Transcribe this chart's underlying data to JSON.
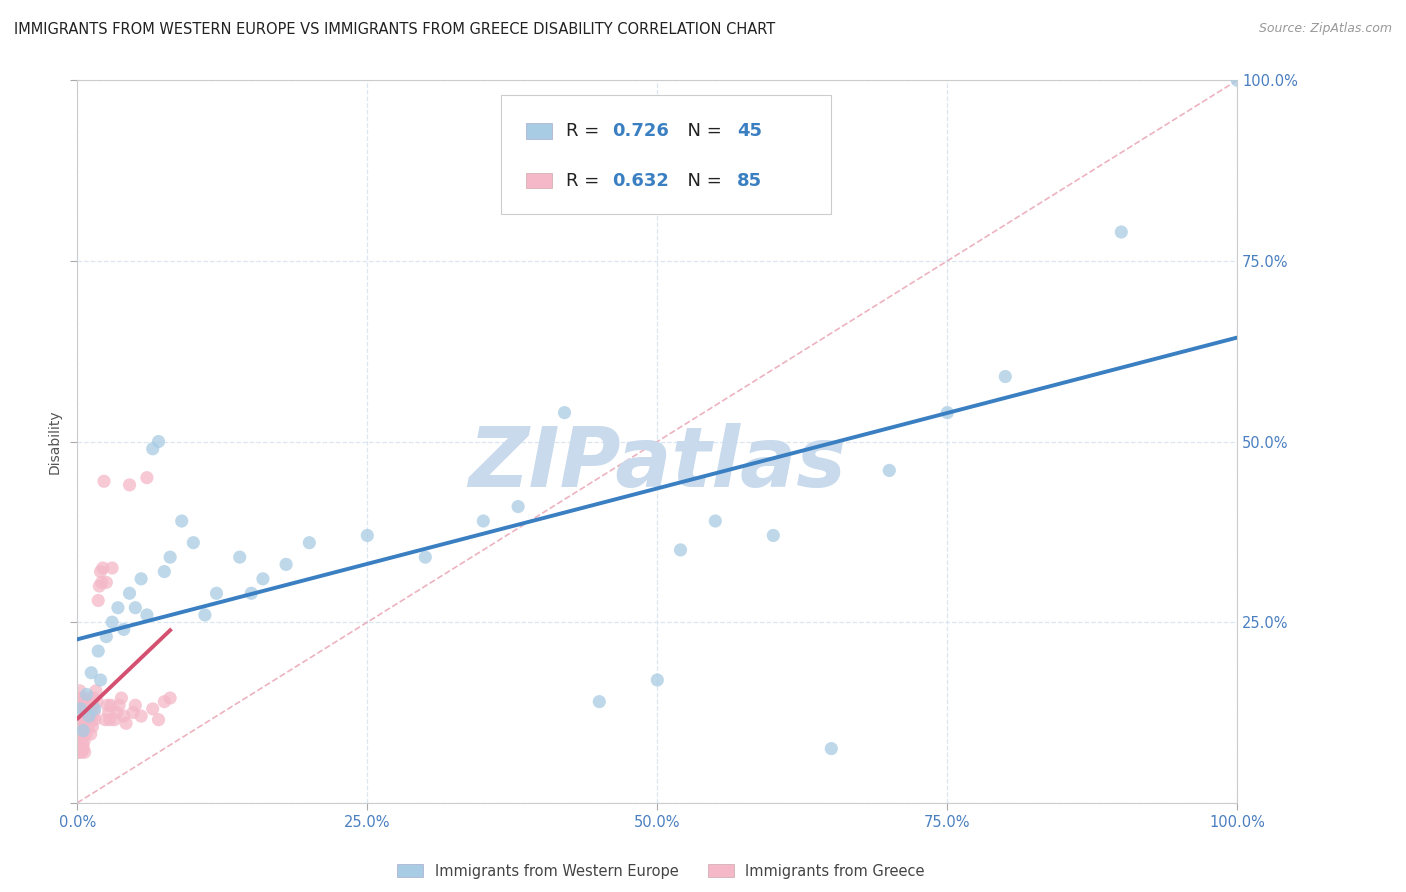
{
  "title": "IMMIGRANTS FROM WESTERN EUROPE VS IMMIGRANTS FROM GREECE DISABILITY CORRELATION CHART",
  "source": "Source: ZipAtlas.com",
  "ylabel": "Disability",
  "blue_label": "Immigrants from Western Europe",
  "pink_label": "Immigrants from Greece",
  "blue_R": 0.726,
  "blue_N": 45,
  "pink_R": 0.632,
  "pink_N": 85,
  "blue_color": "#a8cce4",
  "pink_color": "#f4b8c8",
  "blue_line_color": "#3a7fc1",
  "pink_line_color": "#d45070",
  "ref_line_color": "#e8a0b0",
  "grid_color": "#d8e4f0",
  "watermark_color": "#c8daec",
  "title_color": "#222222",
  "axis_tick_color": "#4a7fc0",
  "ylabel_color": "#555555",
  "legend_text_color": "#222222",
  "legend_val_color": "#3a7fc1",
  "blue_x": [
    0.3,
    0.5,
    0.8,
    1.0,
    1.2,
    1.5,
    1.8,
    2.0,
    2.5,
    3.0,
    3.5,
    4.0,
    4.5,
    5.0,
    5.5,
    6.0,
    6.5,
    7.0,
    7.5,
    8.0,
    9.0,
    10.0,
    11.0,
    12.0,
    14.0,
    15.0,
    16.0,
    18.0,
    20.0,
    25.0,
    30.0,
    35.0,
    38.0,
    42.0,
    45.0,
    50.0,
    52.0,
    55.0,
    60.0,
    65.0,
    70.0,
    75.0,
    80.0,
    90.0,
    100.0
  ],
  "blue_y": [
    13.0,
    10.0,
    15.0,
    12.0,
    18.0,
    13.0,
    21.0,
    17.0,
    23.0,
    25.0,
    27.0,
    24.0,
    29.0,
    27.0,
    31.0,
    26.0,
    49.0,
    50.0,
    32.0,
    34.0,
    39.0,
    36.0,
    26.0,
    29.0,
    34.0,
    29.0,
    31.0,
    33.0,
    36.0,
    37.0,
    34.0,
    39.0,
    41.0,
    54.0,
    14.0,
    17.0,
    35.0,
    39.0,
    37.0,
    7.5,
    46.0,
    54.0,
    59.0,
    79.0,
    100.0
  ],
  "pink_x": [
    0.05,
    0.08,
    0.1,
    0.12,
    0.15,
    0.18,
    0.2,
    0.22,
    0.25,
    0.28,
    0.3,
    0.32,
    0.35,
    0.38,
    0.4,
    0.42,
    0.45,
    0.48,
    0.5,
    0.55,
    0.6,
    0.65,
    0.7,
    0.75,
    0.8,
    0.85,
    0.9,
    0.95,
    1.0,
    1.05,
    1.1,
    1.15,
    1.2,
    1.25,
    1.3,
    1.35,
    1.4,
    1.45,
    1.5,
    1.6,
    1.7,
    1.8,
    1.9,
    2.0,
    2.1,
    2.2,
    2.3,
    2.4,
    2.5,
    2.6,
    2.7,
    2.8,
    2.9,
    3.0,
    3.2,
    3.4,
    3.6,
    3.8,
    4.0,
    4.2,
    4.5,
    4.8,
    5.0,
    5.5,
    6.0,
    6.5,
    7.0,
    7.5,
    8.0,
    0.05,
    0.07,
    0.09,
    0.11,
    0.13,
    0.16,
    0.19,
    0.23,
    0.27,
    0.33,
    0.37,
    0.43,
    0.47,
    0.52,
    0.58,
    0.63
  ],
  "pink_y": [
    13.5,
    12.0,
    11.0,
    14.5,
    12.5,
    9.5,
    11.5,
    15.5,
    13.5,
    12.5,
    10.5,
    11.5,
    13.5,
    9.5,
    11.5,
    12.5,
    14.5,
    10.5,
    12.0,
    13.5,
    12.0,
    11.0,
    14.0,
    9.5,
    11.5,
    13.0,
    12.5,
    10.5,
    14.5,
    11.5,
    13.5,
    9.5,
    12.5,
    11.5,
    10.5,
    13.5,
    14.5,
    12.5,
    11.5,
    15.5,
    14.0,
    28.0,
    30.0,
    32.0,
    30.5,
    32.5,
    44.5,
    11.5,
    30.5,
    13.5,
    12.5,
    11.5,
    13.5,
    32.5,
    11.5,
    12.5,
    13.5,
    14.5,
    12.0,
    11.0,
    44.0,
    12.5,
    13.5,
    12.0,
    45.0,
    13.0,
    11.5,
    14.0,
    14.5,
    7.0,
    8.0,
    7.5,
    8.5,
    7.0,
    8.0,
    7.5,
    8.0,
    7.5,
    8.5,
    7.0,
    7.5,
    8.0,
    7.5,
    8.5,
    7.0
  ]
}
